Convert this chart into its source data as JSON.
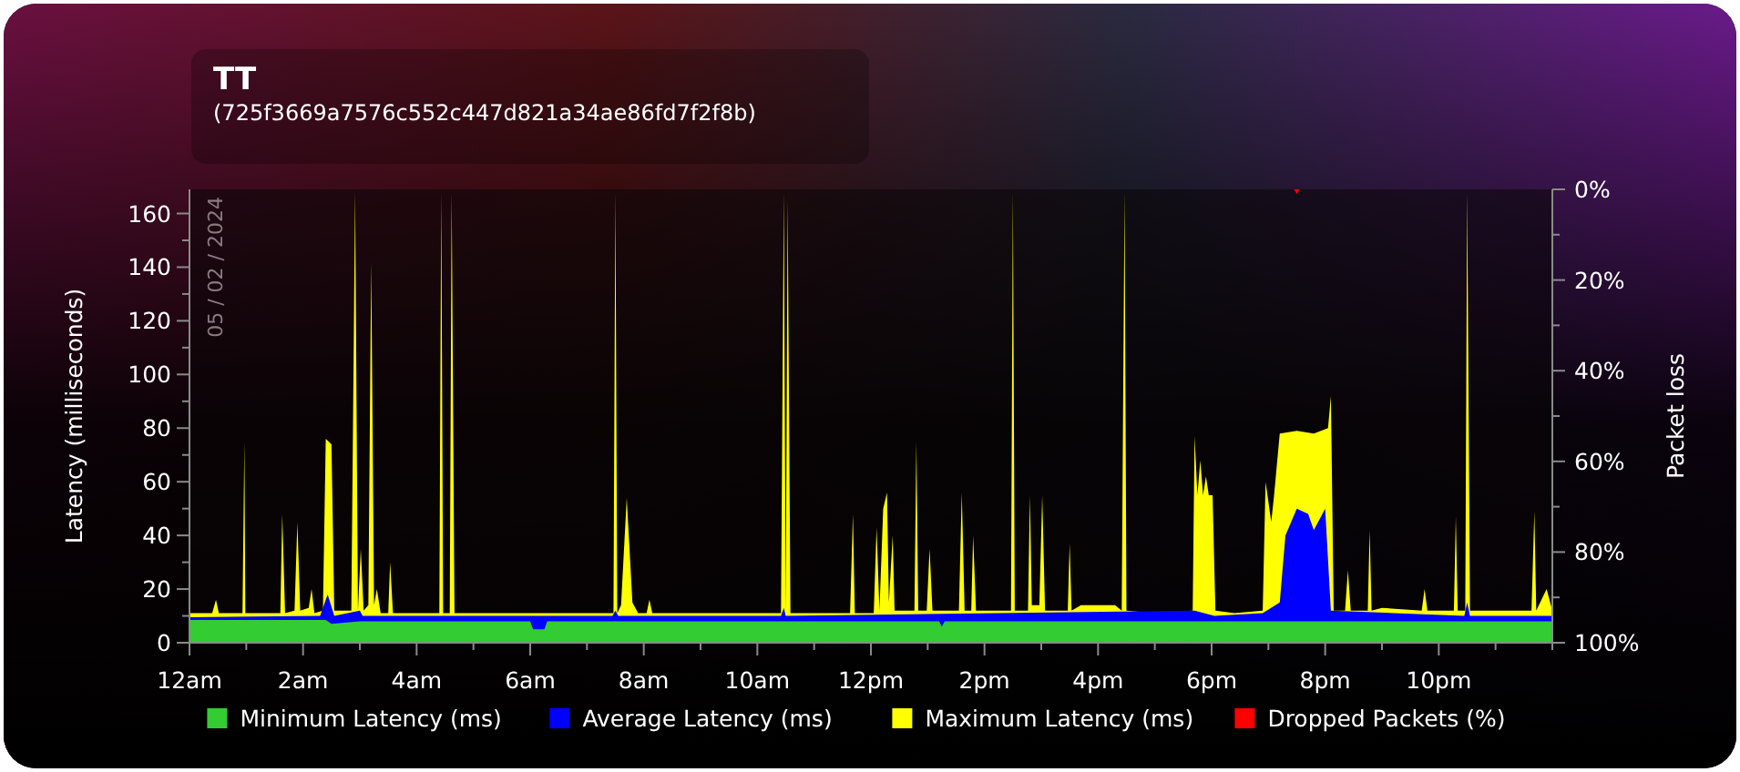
{
  "chart_data": {
    "type": "area",
    "title": "TT",
    "subtitle": "(725f3669a7576c552c447d821a34ae86fd7f2f8b)",
    "ylabel": "Latency (milliseconds)",
    "y2label": "Packet loss",
    "annotations": [
      "05 / 02 / 2024"
    ],
    "xlim": [
      "2024-02-05T00:00",
      "2024-02-06T00:00"
    ],
    "xticks": [
      {
        "value": "2024-02-05T00:00",
        "label": "12am"
      },
      {
        "value": "2024-02-05T01:00",
        "label": null
      },
      {
        "value": "2024-02-05T02:00",
        "label": "2am"
      },
      {
        "value": "2024-02-05T03:00",
        "label": null
      },
      {
        "value": "2024-02-05T04:00",
        "label": "4am"
      },
      {
        "value": "2024-02-05T05:00",
        "label": null
      },
      {
        "value": "2024-02-05T06:00",
        "label": "6am"
      },
      {
        "value": "2024-02-05T07:00",
        "label": null
      },
      {
        "value": "2024-02-05T08:00",
        "label": "8am"
      },
      {
        "value": "2024-02-05T09:00",
        "label": null
      },
      {
        "value": "2024-02-05T10:00",
        "label": "10am"
      },
      {
        "value": "2024-02-05T11:00",
        "label": null
      },
      {
        "value": "2024-02-05T12:00",
        "label": "12pm"
      },
      {
        "value": "2024-02-05T13:00",
        "label": null
      },
      {
        "value": "2024-02-05T14:00",
        "label": "2pm"
      },
      {
        "value": "2024-02-05T15:00",
        "label": null
      },
      {
        "value": "2024-02-05T16:00",
        "label": "4pm"
      },
      {
        "value": "2024-02-05T17:00",
        "label": null
      },
      {
        "value": "2024-02-05T18:00",
        "label": "6pm"
      },
      {
        "value": "2024-02-05T19:00",
        "label": null
      },
      {
        "value": "2024-02-05T20:00",
        "label": "8pm"
      },
      {
        "value": "2024-02-05T21:00",
        "label": null
      },
      {
        "value": "2024-02-05T22:00",
        "label": "10pm"
      },
      {
        "value": "2024-02-05T23:00",
        "label": null
      },
      {
        "value": "2024-02-06T00:00",
        "label": null
      }
    ],
    "ylim": [
      0,
      169
    ],
    "yticks": [
      0,
      {
        "value": 10,
        "label": null
      },
      20,
      {
        "value": 30,
        "label": null
      },
      40,
      {
        "value": 50,
        "label": null
      },
      60,
      {
        "value": 70,
        "label": null
      },
      80,
      {
        "value": 90,
        "label": null
      },
      100,
      {
        "value": 110,
        "label": null
      },
      120,
      {
        "value": 130,
        "label": null
      },
      140,
      {
        "value": 150,
        "label": null
      },
      160
    ],
    "y2lim": [
      100,
      0
    ],
    "y2ticks": [
      {
        "value": 0,
        "label": "0%"
      },
      {
        "value": 10,
        "label": null
      },
      {
        "value": 20,
        "label": "20%"
      },
      {
        "value": 30,
        "label": null
      },
      {
        "value": 40,
        "label": "40%"
      },
      {
        "value": 50,
        "label": null
      },
      {
        "value": 60,
        "label": "60%"
      },
      {
        "value": 70,
        "label": null
      },
      {
        "value": 80,
        "label": "80%"
      },
      {
        "value": 90,
        "label": null
      },
      {
        "value": 100,
        "label": "100%"
      }
    ],
    "grid": false,
    "legend": "bottom",
    "series": [
      {
        "name": "Minimum Latency (ms)",
        "color": "#33cc33",
        "x": [
          "2024-02-05T00:00",
          "2024-02-05T02:24",
          "2024-02-05T02:30",
          "2024-02-05T03:00",
          "2024-02-05T06:00",
          "2024-02-05T06:03",
          "2024-02-05T06:15",
          "2024-02-05T06:18",
          "2024-02-05T13:12",
          "2024-02-05T13:15",
          "2024-02-05T13:18",
          "2024-02-06T00:00"
        ],
        "values": [
          8.5,
          8.5,
          7,
          8,
          8,
          5,
          5,
          8,
          8,
          6,
          8,
          8
        ]
      },
      {
        "name": "Average Latency (ms)",
        "color": "#0000ff",
        "x": [
          "2024-02-05T00:00",
          "2024-02-05T02:18",
          "2024-02-05T02:26",
          "2024-02-05T02:33",
          "2024-02-05T03:00",
          "2024-02-05T03:03",
          "2024-02-05T07:27",
          "2024-02-05T07:30",
          "2024-02-05T07:33",
          "2024-02-05T10:25",
          "2024-02-05T10:28",
          "2024-02-05T10:30",
          "2024-02-05T17:42",
          "2024-02-05T18:03",
          "2024-02-05T18:54",
          "2024-02-05T19:12",
          "2024-02-05T19:18",
          "2024-02-05T19:30",
          "2024-02-05T19:42",
          "2024-02-05T19:48",
          "2024-02-05T20:00",
          "2024-02-05T20:06",
          "2024-02-05T22:27",
          "2024-02-05T22:30",
          "2024-02-05T22:33",
          "2024-02-06T00:00"
        ],
        "values": [
          9.5,
          10,
          18,
          10,
          12,
          10,
          10,
          12,
          10,
          10,
          13,
          10,
          12,
          10,
          11,
          15,
          40,
          50,
          48,
          42,
          50,
          12,
          10,
          15,
          10,
          10
        ]
      },
      {
        "name": "Maximum Latency (ms)",
        "color": "#ffff00",
        "x": [
          "2024-02-05T00:00",
          "2024-02-05T00:24",
          "2024-02-05T00:28",
          "2024-02-05T00:31",
          "2024-02-05T00:56",
          "2024-02-05T00:58",
          "2024-02-05T00:59",
          "2024-02-05T01:36",
          "2024-02-05T01:38",
          "2024-02-05T01:41",
          "2024-02-05T01:51",
          "2024-02-05T01:54",
          "2024-02-05T01:57",
          "2024-02-05T02:06",
          "2024-02-05T02:09",
          "2024-02-05T02:12",
          "2024-02-05T02:21",
          "2024-02-05T02:24",
          "2024-02-05T02:30",
          "2024-02-05T02:33",
          "2024-02-05T02:51",
          "2024-02-05T02:55",
          "2024-02-05T02:58",
          "2024-02-05T03:01",
          "2024-02-05T03:04",
          "2024-02-05T03:09",
          "2024-02-05T03:12",
          "2024-02-05T03:15",
          "2024-02-05T03:18",
          "2024-02-05T03:22",
          "2024-02-05T03:30",
          "2024-02-05T03:32",
          "2024-02-05T03:35",
          "2024-02-05T04:24",
          "2024-02-05T04:26",
          "2024-02-05T04:28",
          "2024-02-05T04:35",
          "2024-02-05T04:37",
          "2024-02-05T04:40",
          "2024-02-05T07:28",
          "2024-02-05T07:30",
          "2024-02-05T07:32",
          "2024-02-05T07:36",
          "2024-02-05T07:42",
          "2024-02-05T07:48",
          "2024-02-05T07:54",
          "2024-02-05T08:03",
          "2024-02-05T08:06",
          "2024-02-05T08:09",
          "2024-02-05T10:25",
          "2024-02-05T10:28",
          "2024-02-05T10:30",
          "2024-02-05T10:32",
          "2024-02-05T10:35",
          "2024-02-05T11:38",
          "2024-02-05T11:41",
          "2024-02-05T11:43",
          "2024-02-05T12:03",
          "2024-02-05T12:06",
          "2024-02-05T12:09",
          "2024-02-05T12:13",
          "2024-02-05T12:17",
          "2024-02-05T12:19",
          "2024-02-05T12:23",
          "2024-02-05T12:25",
          "2024-02-05T12:46",
          "2024-02-05T12:48",
          "2024-02-05T12:50",
          "2024-02-05T12:59",
          "2024-02-05T13:02",
          "2024-02-05T13:05",
          "2024-02-05T13:33",
          "2024-02-05T13:36",
          "2024-02-05T13:39",
          "2024-02-05T13:46",
          "2024-02-05T13:48",
          "2024-02-05T13:51",
          "2024-02-05T14:28",
          "2024-02-05T14:30",
          "2024-02-05T14:32",
          "2024-02-05T14:46",
          "2024-02-05T14:48",
          "2024-02-05T14:50",
          "2024-02-05T14:58",
          "2024-02-05T15:01",
          "2024-02-05T15:04",
          "2024-02-05T15:28",
          "2024-02-05T15:30",
          "2024-02-05T15:32",
          "2024-02-05T15:42",
          "2024-02-05T16:18",
          "2024-02-05T16:25",
          "2024-02-05T16:28",
          "2024-02-05T16:30",
          "2024-02-05T17:00",
          "2024-02-05T17:40",
          "2024-02-05T17:42",
          "2024-02-05T17:45",
          "2024-02-05T17:48",
          "2024-02-05T17:51",
          "2024-02-05T17:54",
          "2024-02-05T17:57",
          "2024-02-05T18:01",
          "2024-02-05T18:04",
          "2024-02-05T18:24",
          "2024-02-05T18:54",
          "2024-02-05T18:57",
          "2024-02-05T19:03",
          "2024-02-05T19:06",
          "2024-02-05T19:12",
          "2024-02-05T19:30",
          "2024-02-05T19:48",
          "2024-02-05T20:03",
          "2024-02-05T20:06",
          "2024-02-05T20:09",
          "2024-02-05T20:21",
          "2024-02-05T20:24",
          "2024-02-05T20:27",
          "2024-02-05T20:45",
          "2024-02-05T20:47",
          "2024-02-05T20:49",
          "2024-02-05T21:00",
          "2024-02-05T21:42",
          "2024-02-05T21:45",
          "2024-02-05T21:48",
          "2024-02-05T22:16",
          "2024-02-05T22:18",
          "2024-02-05T22:20",
          "2024-02-05T22:28",
          "2024-02-05T22:30",
          "2024-02-05T22:33",
          "2024-02-05T23:38",
          "2024-02-05T23:41",
          "2024-02-05T23:43",
          "2024-02-05T23:54",
          "2024-02-06T00:00"
        ],
        "values": [
          11,
          11,
          16,
          11,
          11,
          75,
          11,
          11,
          48,
          11,
          12,
          45,
          12,
          13,
          20,
          11,
          12,
          76,
          74,
          12,
          12,
          168,
          12,
          35,
          12,
          14,
          142,
          14,
          20,
          11,
          11,
          30,
          11,
          11,
          168,
          11,
          11,
          168,
          11,
          11,
          168,
          11,
          14,
          54,
          15,
          11,
          11,
          16,
          11,
          11,
          168,
          11,
          165,
          11,
          11,
          48,
          11,
          11,
          43,
          12,
          50,
          56,
          15,
          40,
          12,
          12,
          75,
          12,
          12,
          35,
          12,
          12,
          56,
          12,
          12,
          40,
          12,
          12,
          168,
          12,
          12,
          55,
          14,
          14,
          55,
          12,
          12,
          37,
          12,
          14,
          14,
          12,
          168,
          12,
          11,
          12,
          77,
          55,
          68,
          55,
          62,
          55,
          55,
          12,
          11,
          12,
          60,
          45,
          55,
          78,
          79,
          78,
          80,
          92,
          12,
          12,
          27,
          12,
          12,
          42,
          12,
          13,
          12,
          20,
          12,
          12,
          47,
          12,
          12,
          168,
          12,
          12,
          49,
          12,
          20,
          12
        ]
      },
      {
        "name": "Dropped Packets (%)",
        "color": "#ff0000",
        "axis": "y2",
        "x": [
          "2024-02-05T00:00",
          "2024-02-05T19:27",
          "2024-02-05T19:30",
          "2024-02-05T19:33",
          "2024-02-06T00:00"
        ],
        "values": [
          0,
          0,
          1,
          0,
          0
        ]
      }
    ]
  }
}
